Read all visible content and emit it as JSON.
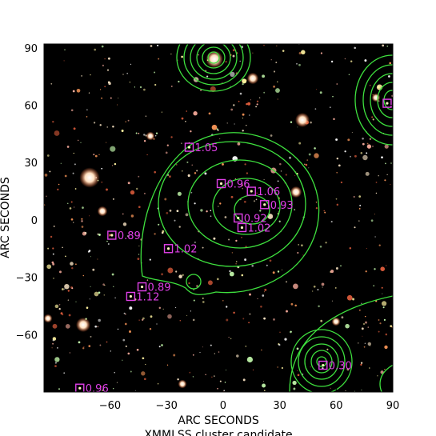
{
  "figure": {
    "xlabel": "ARC SECONDS",
    "ylabel": "ARC SECONDS",
    "caption": "XMMLSS cluster candidate",
    "x_ticks": [
      "-60",
      "-30",
      "0",
      "30",
      "60",
      "90"
    ],
    "y_ticks": [
      "90",
      "60",
      "30",
      "0",
      "-30",
      "-60"
    ]
  },
  "chart_data": {
    "type": "scatter",
    "xlim": [
      -95,
      90
    ],
    "ylim": [
      -90,
      92
    ],
    "x_tick_values": [
      -60,
      -30,
      0,
      30,
      60,
      90
    ],
    "y_tick_values": [
      90,
      60,
      30,
      0,
      -30,
      -60
    ],
    "colors": {
      "contour": "#3ee03e",
      "marker": "#e040e8",
      "background": "#000000"
    },
    "galaxies": [
      {
        "x": -18,
        "y": 38,
        "z": "1.05"
      },
      {
        "x": -1,
        "y": 19,
        "z": "0.96"
      },
      {
        "x": 15,
        "y": 15,
        "z": "1.06"
      },
      {
        "x": 22,
        "y": 8,
        "z": "0.93"
      },
      {
        "x": 8,
        "y": 1,
        "z": "0.92"
      },
      {
        "x": 10,
        "y": -4,
        "z": "1.02"
      },
      {
        "x": -59,
        "y": -8,
        "z": "0.89"
      },
      {
        "x": -29,
        "y": -15,
        "z": "1.02"
      },
      {
        "x": -43,
        "y": -35,
        "z": "0.89"
      },
      {
        "x": -49,
        "y": -40,
        "z": "1.12"
      },
      {
        "x": 53,
        "y": -76,
        "z": "0.30"
      },
      {
        "x": -76,
        "y": -88,
        "z": "0.96"
      },
      {
        "x": 87,
        "y": 61,
        "z": ""
      }
    ]
  }
}
